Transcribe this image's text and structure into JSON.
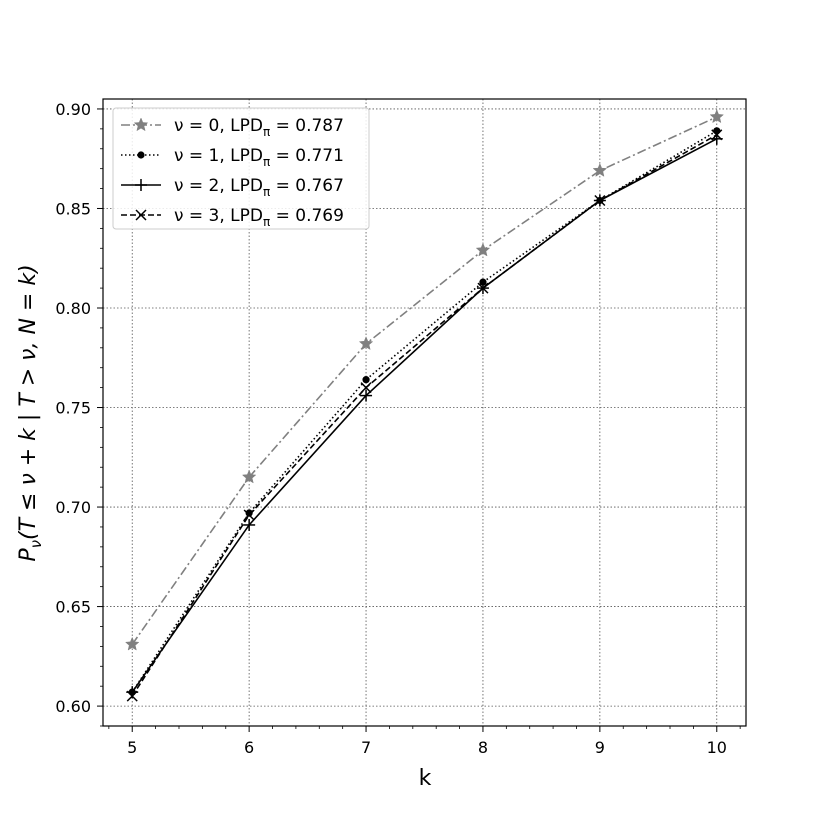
{
  "chart_data": {
    "type": "line",
    "title": "",
    "xlabel": "k",
    "ylabel": "P_ν(T ≤ ν + k | T > ν, N = k)",
    "ylabel_parts": {
      "p": "P",
      "sub": "ν",
      "rest": "(T ≤ ν + k | T > ν, N = k)"
    },
    "xlim": [
      4.75,
      10.25
    ],
    "ylim": [
      0.59,
      0.905
    ],
    "x_ticks": [
      5,
      6,
      7,
      8,
      9,
      10
    ],
    "y_ticks": [
      0.6,
      0.65,
      0.7,
      0.75,
      0.8,
      0.85,
      0.9
    ],
    "y_tick_labels": [
      "0.60",
      "0.65",
      "0.70",
      "0.75",
      "0.80",
      "0.85",
      "0.90"
    ],
    "grid": true,
    "legend_position": "top-left",
    "x": [
      5,
      6,
      7,
      8,
      9,
      10
    ],
    "series": [
      {
        "name": "ν = 0, LPD_π = 0.787",
        "label_parts": {
          "a": "ν = 0, LPD",
          "sub": "π",
          "b": " = 0.787"
        },
        "values": [
          0.631,
          0.715,
          0.782,
          0.829,
          0.869,
          0.896
        ],
        "color": "#808080",
        "linestyle": "dashdot",
        "marker": "star"
      },
      {
        "name": "ν = 1, LPD_π = 0.771",
        "label_parts": {
          "a": "ν = 1, LPD",
          "sub": "π",
          "b": " = 0.771"
        },
        "values": [
          0.607,
          0.697,
          0.764,
          0.813,
          0.854,
          0.889
        ],
        "color": "#000000",
        "linestyle": "dotted",
        "marker": "dot"
      },
      {
        "name": "ν = 2, LPD_π = 0.767",
        "label_parts": {
          "a": "ν = 2, LPD",
          "sub": "π",
          "b": " = 0.767"
        },
        "values": [
          0.607,
          0.691,
          0.756,
          0.81,
          0.854,
          0.885
        ],
        "color": "#000000",
        "linestyle": "solid",
        "marker": "plus"
      },
      {
        "name": "ν = 3, LPD_π = 0.769",
        "label_parts": {
          "a": "ν = 3, LPD",
          "sub": "π",
          "b": " = 0.769"
        },
        "values": [
          0.605,
          0.696,
          0.76,
          0.81,
          0.854,
          0.887
        ],
        "color": "#000000",
        "linestyle": "dashed",
        "marker": "x"
      }
    ]
  }
}
